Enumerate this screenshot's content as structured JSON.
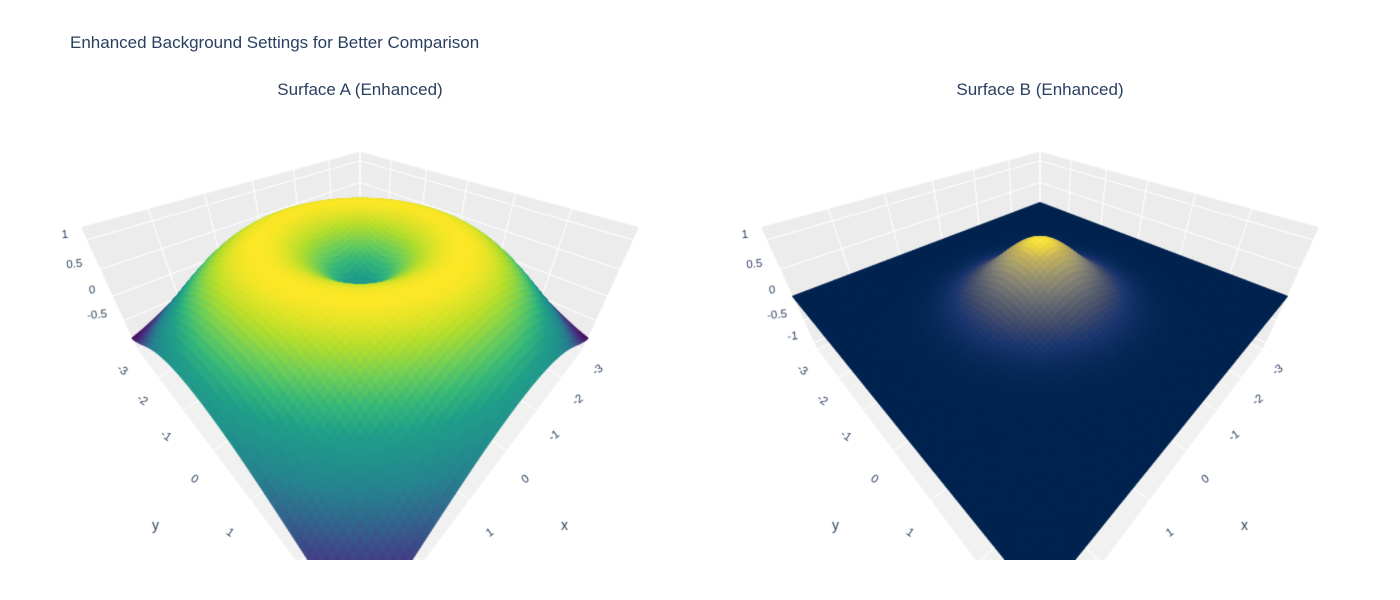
{
  "figure": {
    "title": "Enhanced Background Settings for Better Comparison",
    "title_color": "#2a3f5f",
    "background_color": "#ffffff"
  },
  "chart_data": [
    {
      "type": "surface",
      "title": "Surface A (Enhanced)",
      "formula": "z = sin(sqrt(x^2 + y^2))",
      "formula_id": "sin_r",
      "colorscale": "viridis",
      "x_range": [
        -3,
        3
      ],
      "y_range": [
        -3,
        3
      ],
      "z_range": [
        -1.15,
        1.2
      ],
      "z_min_data": -0.894,
      "z_max_data": 1.0,
      "grid_n": 76,
      "x_label": "x",
      "y_label": "y",
      "x_ticks": [
        -3,
        -2,
        -1,
        0,
        1
      ],
      "y_ticks": [
        -3,
        -2,
        -1,
        0,
        1
      ],
      "z_ticks": [
        1,
        0.5,
        0,
        -0.5
      ],
      "x_grid": [
        -3,
        -2,
        -1,
        0,
        1,
        2,
        3
      ],
      "y_grid": [
        -3,
        -2,
        -1,
        0,
        1,
        2,
        3
      ],
      "z_grid": [
        1,
        0.5,
        0,
        -0.5,
        -1
      ],
      "wall_color": "#ececec",
      "floor_color": "#f1f1f1",
      "grid_color": "#ffffff",
      "tick_color": "#2a3f5f"
    },
    {
      "type": "surface",
      "title": "Surface B (Enhanced)",
      "formula": "z = exp(-(x^2 + y^2))",
      "formula_id": "gaussian",
      "colorscale": "cividis",
      "x_range": [
        -3,
        3
      ],
      "y_range": [
        -3,
        3
      ],
      "z_range": [
        -1.15,
        1.2
      ],
      "z_min_data": 0.0,
      "z_max_data": 1.0,
      "grid_n": 76,
      "x_label": "x",
      "y_label": "y",
      "x_ticks": [
        -3,
        -2,
        -1,
        0,
        1
      ],
      "y_ticks": [
        -3,
        -2,
        -1,
        0,
        1
      ],
      "z_ticks": [
        1,
        0.5,
        0,
        -0.5,
        -1
      ],
      "x_grid": [
        -3,
        -2,
        -1,
        0,
        1,
        2,
        3
      ],
      "y_grid": [
        -3,
        -2,
        -1,
        0,
        1,
        2,
        3
      ],
      "z_grid": [
        1,
        0.5,
        0,
        -0.5,
        -1
      ],
      "wall_color": "#ececec",
      "floor_color": "#f1f1f1",
      "grid_color": "#ffffff",
      "tick_color": "#2a3f5f"
    }
  ],
  "colorscales": {
    "viridis": [
      [
        0,
        68,
        1,
        84
      ],
      [
        0.1,
        72,
        40,
        120
      ],
      [
        0.2,
        62,
        73,
        137
      ],
      [
        0.3,
        49,
        104,
        142
      ],
      [
        0.4,
        38,
        130,
        142
      ],
      [
        0.5,
        33,
        145,
        140
      ],
      [
        0.6,
        31,
        158,
        137
      ],
      [
        0.7,
        53,
        183,
        121
      ],
      [
        0.8,
        110,
        206,
        88
      ],
      [
        0.9,
        181,
        222,
        43
      ],
      [
        1,
        253,
        231,
        37
      ]
    ],
    "cividis": [
      [
        0,
        0,
        34,
        78
      ],
      [
        0.125,
        24,
        52,
        110
      ],
      [
        0.25,
        60,
        72,
        107
      ],
      [
        0.375,
        85,
        92,
        109
      ],
      [
        0.5,
        110,
        112,
        115
      ],
      [
        0.625,
        135,
        133,
        116
      ],
      [
        0.75,
        164,
        155,
        107
      ],
      [
        0.875,
        198,
        178,
        90
      ],
      [
        1,
        253,
        231,
        55
      ]
    ]
  }
}
